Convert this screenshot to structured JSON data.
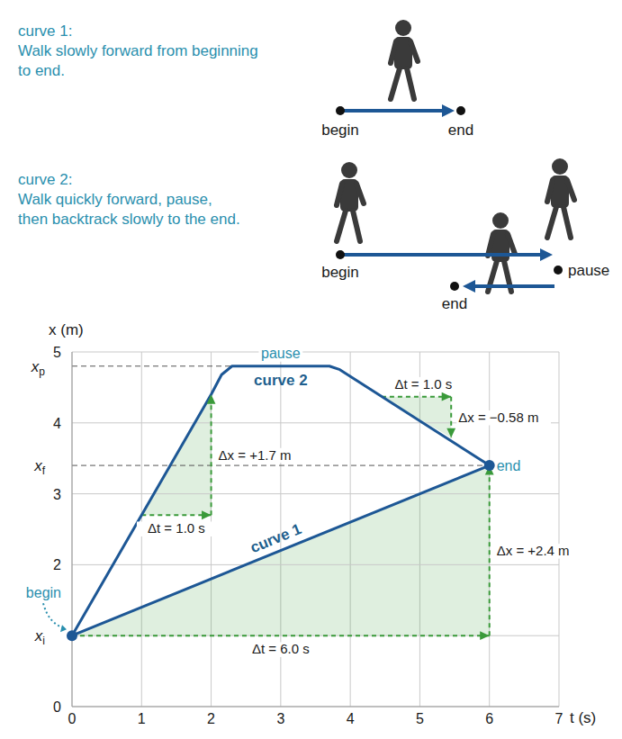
{
  "illustration": [
    {
      "heading": "curve 1:",
      "lines": [
        "Walk slowly forward from beginning",
        "to end."
      ],
      "labels": [
        "begin",
        "end"
      ]
    },
    {
      "heading": "curve 2:",
      "lines": [
        "Walk quickly forward, pause,",
        "then backtrack slowly to the end."
      ],
      "labels": [
        "begin",
        "pause",
        "end"
      ]
    }
  ],
  "chart_data": {
    "type": "line",
    "xlabel": "t (s)",
    "ylabel": "x (m)",
    "xlim": [
      0,
      7
    ],
    "xticks": [
      0,
      1,
      2,
      3,
      4,
      5,
      6,
      7
    ],
    "ylim": [
      0,
      5
    ],
    "yticks": [
      0,
      2,
      3,
      4,
      5
    ],
    "grid": true,
    "series": [
      {
        "name": "curve 1",
        "color": "#1d5795",
        "x": [
          0,
          6
        ],
        "values": [
          1.0,
          3.4
        ]
      },
      {
        "name": "curve 2",
        "color": "#1d5795",
        "x": [
          0,
          2.0,
          2.15,
          2.3,
          3.7,
          3.85,
          6
        ],
        "values": [
          1.0,
          4.4,
          4.68,
          4.8,
          4.8,
          4.75,
          3.4
        ]
      }
    ],
    "markers": [
      {
        "symbol": "x",
        "sub": "i",
        "value": 1.0,
        "line_style": "solid",
        "until": 7
      },
      {
        "symbol": "x",
        "sub": "f",
        "value": 3.4,
        "line_style": "dashed",
        "until": 6
      },
      {
        "symbol": "x",
        "sub": "p",
        "value": 4.8,
        "line_style": "dashed",
        "until": 2.3
      }
    ],
    "point_labels": [
      {
        "text": "begin",
        "t": 0,
        "x": 1.0
      },
      {
        "text": "end",
        "t": 6,
        "x": 3.4
      },
      {
        "text": "pause",
        "t": 3.0,
        "x": 4.8
      }
    ],
    "triangles": [
      {
        "t0": 1,
        "x0": 2.7,
        "dt": 1.0,
        "dx": 1.7,
        "dt_label": "Δt = 1.0 s",
        "dx_label": "Δx = +1.7 m",
        "color": "#3a9a3a"
      },
      {
        "t0": 4.45,
        "x0": 4.37,
        "dt": 1.0,
        "dx": -0.58,
        "dt_label": "Δt = 1.0 s",
        "dx_label": "Δx = −0.58 m",
        "color": "#3a9a3a"
      },
      {
        "t0": 0,
        "x0": 1.0,
        "dt": 6.0,
        "dx": 2.4,
        "dt_label": "Δt = 6.0 s",
        "dx_label": "Δx = +2.4 m",
        "color": "#3a9a3a"
      }
    ]
  }
}
